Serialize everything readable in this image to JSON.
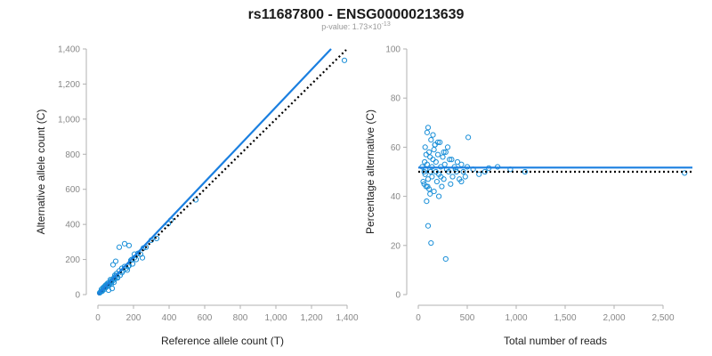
{
  "title": "rs11687800 - ENSG00000213639",
  "subtitle": {
    "prefix": "p-value: 1.73×10",
    "exponent": "-13"
  },
  "colors": {
    "points": "#1a8fd8",
    "fit_line": "#1a7fe0",
    "reference_line": "#000000",
    "axis": "#b0b0b0",
    "tick_text": "#888888"
  },
  "chart_data": [
    {
      "type": "scatter",
      "xlabel": "Reference allele count (T)",
      "ylabel": "Alternative allele count (C)",
      "xlim": [
        0,
        1400
      ],
      "ylim": [
        0,
        1400
      ],
      "xticks": [
        0,
        200,
        400,
        600,
        800,
        1000,
        1200,
        1400
      ],
      "xtick_labels": [
        "0",
        "200",
        "400",
        "600",
        "800",
        "1,000",
        "1,200",
        "1,400"
      ],
      "yticks": [
        0,
        200,
        400,
        600,
        800,
        1000,
        1200,
        1400
      ],
      "ytick_labels": [
        "0",
        "200",
        "400",
        "600",
        "800",
        "1,000",
        "1,200",
        "1,400"
      ],
      "grid": false,
      "fit_line": {
        "x": [
          0,
          1310
        ],
        "y": [
          0,
          1400
        ],
        "style": "solid"
      },
      "reference_line": {
        "x": [
          0,
          1395
        ],
        "y": [
          0,
          1395
        ],
        "style": "dotted"
      },
      "points": {
        "x": [
          1385,
          550,
          410,
          395,
          330,
          300,
          270,
          255,
          240,
          225,
          215,
          205,
          195,
          185,
          175,
          170,
          160,
          150,
          140,
          135,
          125,
          120,
          110,
          105,
          100,
          95,
          90,
          85,
          80,
          75,
          70,
          65,
          60,
          55,
          50,
          45,
          40,
          35,
          30,
          25,
          20,
          15,
          10,
          150,
          120,
          175,
          190,
          100,
          85,
          250,
          205,
          165,
          135,
          110,
          95,
          75,
          60,
          45,
          30,
          20,
          90,
          70,
          55,
          40,
          25,
          15,
          60,
          80
        ],
        "y": [
          1335,
          540,
          425,
          405,
          320,
          310,
          270,
          265,
          230,
          235,
          200,
          210,
          175,
          195,
          165,
          160,
          150,
          160,
          135,
          150,
          110,
          135,
          100,
          120,
          105,
          90,
          95,
          80,
          85,
          70,
          75,
          60,
          65,
          50,
          55,
          40,
          45,
          30,
          35,
          25,
          20,
          15,
          10,
          290,
          270,
          280,
          200,
          190,
          170,
          210,
          230,
          140,
          125,
          95,
          110,
          60,
          50,
          55,
          40,
          30,
          70,
          85,
          65,
          50,
          20,
          15,
          25,
          35
        ]
      }
    },
    {
      "type": "scatter",
      "xlabel": "Total number of reads",
      "ylabel": "Percentage alternative (C)",
      "xlim": [
        0,
        2800
      ],
      "ylim": [
        0,
        100
      ],
      "xticks": [
        0,
        500,
        1000,
        1500,
        2000,
        2500
      ],
      "xtick_labels": [
        "0",
        "500",
        "1,000",
        "1,500",
        "2,000",
        "2,500"
      ],
      "yticks": [
        0,
        20,
        40,
        60,
        80,
        100
      ],
      "ytick_labels": [
        "0",
        "20",
        "40",
        "60",
        "80",
        "100"
      ],
      "grid": false,
      "fit_line": {
        "x": [
          0,
          2800
        ],
        "y": [
          51.7,
          51.7
        ],
        "style": "solid"
      },
      "reference_line": {
        "x": [
          0,
          2800
        ],
        "y": [
          50,
          50
        ],
        "style": "dotted"
      },
      "points": {
        "x": [
          2720,
          1090,
          940,
          810,
          720,
          680,
          620,
          560,
          510,
          500,
          480,
          460,
          440,
          420,
          400,
          390,
          370,
          350,
          340,
          330,
          310,
          300,
          290,
          280,
          270,
          260,
          250,
          240,
          230,
          220,
          210,
          200,
          190,
          180,
          170,
          160,
          150,
          140,
          130,
          120,
          110,
          100,
          90,
          80,
          70,
          60,
          50,
          40,
          100,
          130,
          280,
          200,
          160,
          120,
          90,
          70,
          60,
          85,
          110,
          150,
          210,
          260,
          320,
          380,
          440,
          180,
          140,
          100,
          80,
          65,
          230,
          170,
          125,
          95,
          75
        ],
        "y": [
          49.5,
          50,
          51,
          52,
          51.5,
          50,
          49,
          51,
          64,
          52,
          48,
          50,
          53,
          47,
          54,
          50,
          52,
          48,
          55,
          45,
          50,
          60,
          51,
          58,
          53,
          47,
          56,
          44,
          52,
          62,
          49,
          57,
          46,
          54,
          61,
          42,
          55,
          48,
          63,
          41,
          58,
          47,
          66,
          44,
          60,
          50,
          46,
          52,
          28,
          21,
          14.5,
          62,
          59,
          56,
          53,
          49,
          45,
          38,
          43,
          65,
          40,
          58,
          55,
          51,
          46,
          50,
          52,
          68,
          57,
          54,
          48,
          61,
          50,
          44,
          51
        ]
      }
    }
  ]
}
